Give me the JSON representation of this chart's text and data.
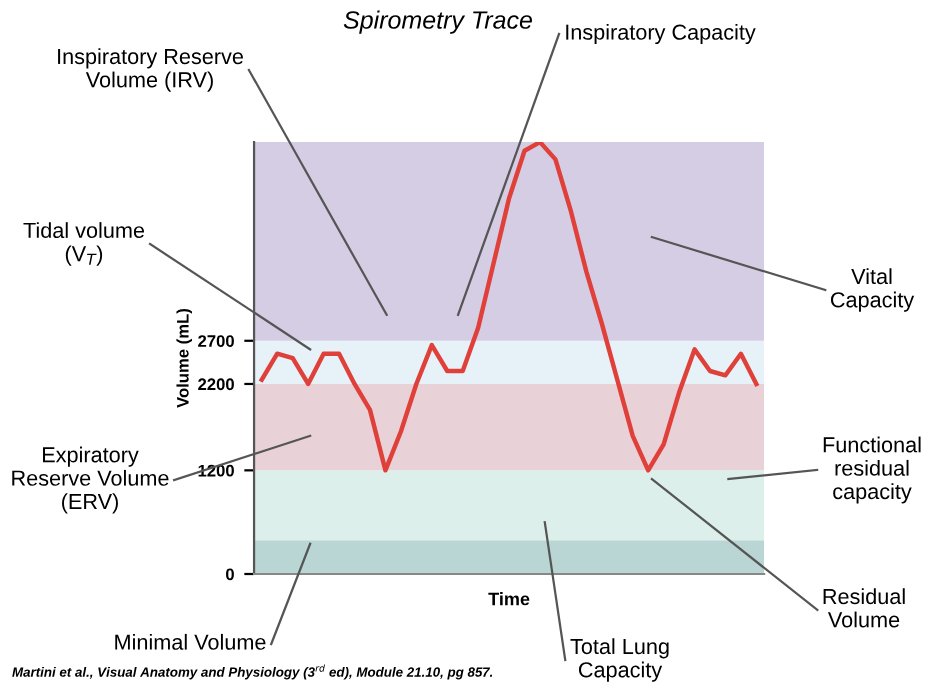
{
  "chart_data": {
    "type": "line",
    "title": "Spirometry Trace",
    "xlabel": "Time",
    "ylabel": "Volume (mL)",
    "categories": [
      null,
      null,
      null,
      null,
      null,
      null,
      null,
      null,
      null,
      null,
      null,
      null,
      null,
      null,
      null,
      null,
      null,
      null,
      null,
      null,
      null,
      null,
      null,
      null,
      null,
      null,
      null,
      null,
      null,
      null,
      null,
      null,
      null
    ],
    "series": [
      {
        "color": "#e0403a",
        "values": [
          2250,
          2550,
          2500,
          2200,
          2550,
          2550,
          2200,
          1900,
          1200,
          1650,
          2200,
          2650,
          2350,
          2350,
          2850,
          3600,
          4350,
          4900,
          5000,
          4800,
          4200,
          3500,
          2900,
          2250,
          1600,
          1200,
          1500,
          2100,
          2600,
          2350,
          2300,
          2550,
          2200
        ]
      }
    ],
    "ylim": [
      0,
      5000
    ],
    "yticks": [
      0,
      1200,
      2200,
      2700
    ],
    "grid": false,
    "legend": false,
    "marker": "none",
    "line_style": "solid",
    "bands": [
      {
        "axis": "y",
        "from": 0,
        "to": 390,
        "color": "#b9d6d4"
      },
      {
        "axis": "y",
        "from": 390,
        "to": 1200,
        "color": "#dcefea"
      },
      {
        "axis": "y",
        "from": 1200,
        "to": 2200,
        "color": "#e9d1d8"
      },
      {
        "axis": "y",
        "from": 2200,
        "to": 2700,
        "color": "#e6f2f8"
      },
      {
        "axis": "y",
        "from": 2700,
        "to": 5000,
        "color": "#d4cde4"
      }
    ],
    "annotations": [
      "Inspiratory Reserve\nVolume (IRV)",
      "Inspiratory Capacity",
      "Tidal volume\n(V$_{T}$)",
      "Expiratory\nReserve Volume\n(ERV)",
      "Minimal Volume",
      "Total Lung\nCapacity",
      "Vital\nCapacity",
      "Functional\nresidual\ncapacity",
      "Residual\nVolume",
      "Martini et al., Visual Anatomy and Physiology (3$^{rd}$ ed), Module 21.10, pg 857."
    ]
  }
}
